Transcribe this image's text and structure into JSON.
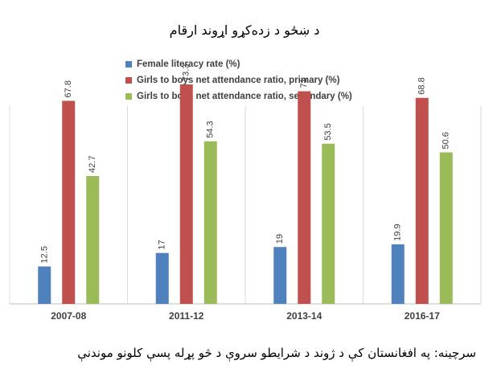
{
  "header": {
    "title": "د ښځو د زده‌کړو اړوند ارقام"
  },
  "footer": {
    "source": "سرچینه: په افغانستان کې د ژوند د شرایطو سروې د څو پړله پسې کلونو موندنې"
  },
  "chart_data": {
    "type": "bar",
    "title": "د ښځو د زده‌کړو اړوند ارقام",
    "categories": [
      "2007-08",
      "2011-12",
      "2013-14",
      "2016-17"
    ],
    "series": [
      {
        "name": "Female literacy rate (%)",
        "values": [
          12.5,
          17,
          19,
          19.9
        ],
        "color": "#4f81bd"
      },
      {
        "name": "Girls to boys net attendance ratio, primary (%)",
        "values": [
          67.8,
          73.3,
          71,
          68.8
        ],
        "color": "#c0504d"
      },
      {
        "name": "Girls to boys net attendance ratio, secondary (%)",
        "values": [
          42.7,
          54.3,
          53.5,
          50.6
        ],
        "color": "#9bbb59"
      }
    ],
    "ylim": [
      0,
      80
    ],
    "grid": false,
    "legend_position": "top-left",
    "data_labels": true
  }
}
